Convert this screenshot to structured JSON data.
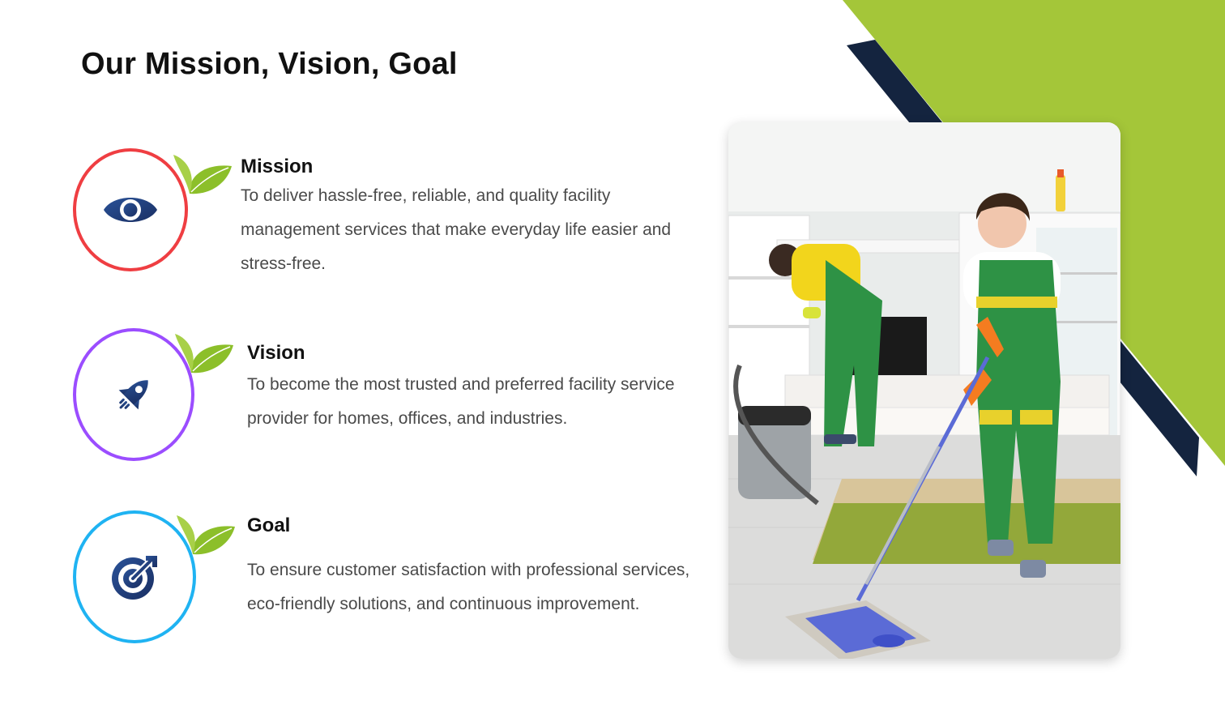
{
  "page": {
    "title": "Our Mission, Vision, Goal"
  },
  "colors": {
    "accent_green": "#a4c639",
    "accent_navy": "#14243f",
    "mission_ring": "#ef3e42",
    "vision_ring": "#9b4dff",
    "goal_ring": "#1fb3f2",
    "icon_blue": "#1f3c7a"
  },
  "items": [
    {
      "id": "mission",
      "title": "Mission",
      "text": "To deliver hassle-free, reliable, and quality facility management services that make everyday life easier and stress-free.",
      "icon": "eye-icon"
    },
    {
      "id": "vision",
      "title": "Vision",
      "text": "To become the most trusted and preferred facility service provider for homes, offices, and industries.",
      "icon": "rocket-icon"
    },
    {
      "id": "goal",
      "title": "Goal",
      "text": "To ensure customer satisfaction with professional services, eco-friendly solutions, and continuous improvement.",
      "icon": "target-icon"
    }
  ],
  "photo": {
    "subject": "cleaning-crew-photo"
  }
}
